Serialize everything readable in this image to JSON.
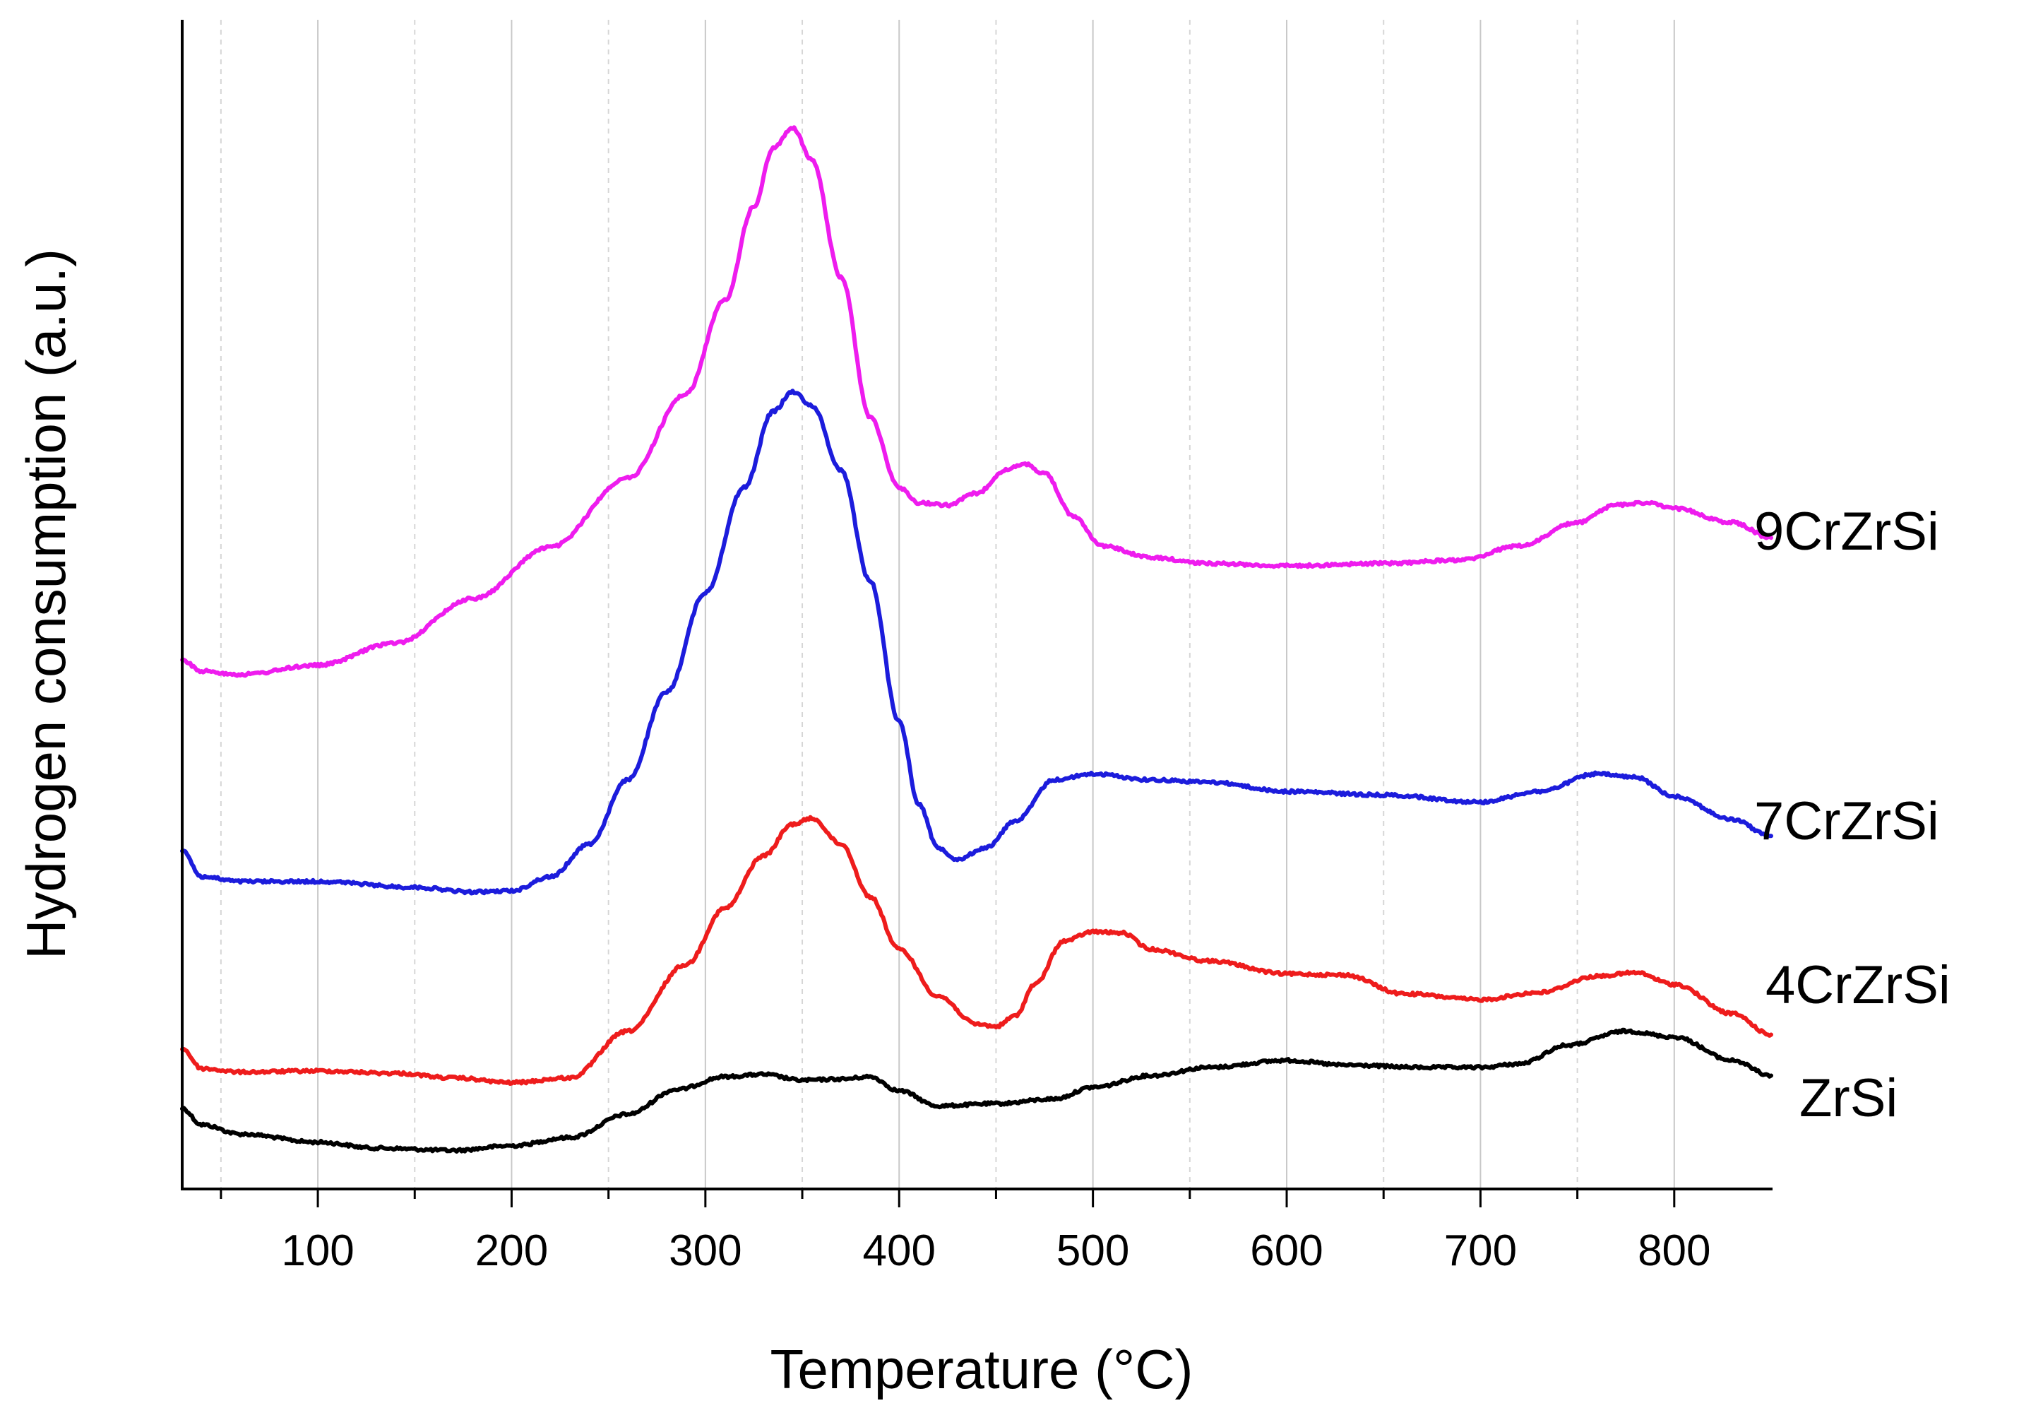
{
  "chart_data": {
    "type": "line",
    "title": "",
    "xlabel": "Temperature (°C)",
    "ylabel": "Hydrogen consumption (a.u.)",
    "xlim": [
      30,
      850
    ],
    "ylim": [
      0,
      100
    ],
    "x_ticks": [
      100,
      200,
      300,
      400,
      500,
      600,
      700,
      800
    ],
    "x_tick_labels": [
      "100",
      "200",
      "300",
      "400",
      "500",
      "600",
      "700",
      "800"
    ],
    "x_minor_ticks": [
      50,
      150,
      250,
      350,
      450,
      550,
      650,
      750
    ],
    "y_tick_labels": false,
    "grid": "vertical",
    "series": [
      {
        "name": "ZrSi",
        "label": "ZrSi",
        "color": "#000000",
        "points": [
          [
            30,
            6.9
          ],
          [
            40,
            5.5
          ],
          [
            60,
            4.7
          ],
          [
            100,
            4.0
          ],
          [
            130,
            3.5
          ],
          [
            170,
            3.3
          ],
          [
            200,
            3.7
          ],
          [
            230,
            4.4
          ],
          [
            260,
            6.4
          ],
          [
            285,
            8.5
          ],
          [
            310,
            9.6
          ],
          [
            330,
            9.8
          ],
          [
            350,
            9.3
          ],
          [
            370,
            9.4
          ],
          [
            385,
            9.6
          ],
          [
            400,
            8.4
          ],
          [
            420,
            7.1
          ],
          [
            450,
            7.3
          ],
          [
            480,
            7.7
          ],
          [
            500,
            8.7
          ],
          [
            530,
            9.7
          ],
          [
            560,
            10.4
          ],
          [
            600,
            11.0
          ],
          [
            630,
            10.6
          ],
          [
            670,
            10.4
          ],
          [
            700,
            10.4
          ],
          [
            720,
            10.7
          ],
          [
            745,
            12.3
          ],
          [
            775,
            13.5
          ],
          [
            800,
            13.0
          ],
          [
            830,
            11.0
          ],
          [
            850,
            9.7
          ]
        ]
      },
      {
        "name": "4CrZrSi",
        "label": "4CrZrSi",
        "color": "#ee1c1c",
        "points": [
          [
            30,
            12.0
          ],
          [
            40,
            10.3
          ],
          [
            60,
            10.0
          ],
          [
            100,
            10.1
          ],
          [
            140,
            9.9
          ],
          [
            170,
            9.5
          ],
          [
            200,
            9.1
          ],
          [
            230,
            9.5
          ],
          [
            260,
            13.5
          ],
          [
            290,
            19.2
          ],
          [
            310,
            24.0
          ],
          [
            330,
            28.5
          ],
          [
            345,
            31.2
          ],
          [
            355,
            31.7
          ],
          [
            370,
            29.5
          ],
          [
            385,
            25.0
          ],
          [
            400,
            20.5
          ],
          [
            420,
            16.5
          ],
          [
            440,
            14.1
          ],
          [
            450,
            13.9
          ],
          [
            460,
            14.8
          ],
          [
            470,
            17.5
          ],
          [
            485,
            21.2
          ],
          [
            500,
            22.0
          ],
          [
            515,
            21.9
          ],
          [
            530,
            20.5
          ],
          [
            560,
            19.5
          ],
          [
            600,
            18.4
          ],
          [
            630,
            18.3
          ],
          [
            660,
            16.7
          ],
          [
            700,
            16.2
          ],
          [
            730,
            16.8
          ],
          [
            760,
            18.2
          ],
          [
            780,
            18.5
          ],
          [
            800,
            17.5
          ],
          [
            830,
            15.0
          ],
          [
            850,
            13.2
          ]
        ]
      },
      {
        "name": "7CrZrSi",
        "label": "7CrZrSi",
        "color": "#1c1cdc",
        "points": [
          [
            30,
            29.0
          ],
          [
            40,
            26.7
          ],
          [
            60,
            26.3
          ],
          [
            100,
            26.3
          ],
          [
            150,
            25.8
          ],
          [
            180,
            25.4
          ],
          [
            200,
            25.5
          ],
          [
            220,
            26.7
          ],
          [
            240,
            29.5
          ],
          [
            260,
            35.0
          ],
          [
            280,
            42.5
          ],
          [
            300,
            51.0
          ],
          [
            320,
            60.0
          ],
          [
            335,
            66.5
          ],
          [
            345,
            68.2
          ],
          [
            355,
            67.0
          ],
          [
            370,
            61.5
          ],
          [
            385,
            52.0
          ],
          [
            400,
            40.0
          ],
          [
            410,
            33.0
          ],
          [
            420,
            29.2
          ],
          [
            430,
            28.2
          ],
          [
            445,
            29.2
          ],
          [
            460,
            31.5
          ],
          [
            480,
            35.0
          ],
          [
            500,
            35.5
          ],
          [
            530,
            35.0
          ],
          [
            560,
            34.8
          ],
          [
            600,
            34.0
          ],
          [
            650,
            33.7
          ],
          [
            700,
            33.1
          ],
          [
            730,
            34.0
          ],
          [
            760,
            35.5
          ],
          [
            780,
            35.2
          ],
          [
            800,
            33.6
          ],
          [
            830,
            31.6
          ],
          [
            850,
            30.2
          ]
        ]
      },
      {
        "name": "9CrZrSi",
        "label": "9CrZrSi",
        "color": "#ee1cee",
        "points": [
          [
            30,
            45.2
          ],
          [
            40,
            44.3
          ],
          [
            60,
            44.0
          ],
          [
            100,
            44.8
          ],
          [
            140,
            46.7
          ],
          [
            180,
            50.5
          ],
          [
            220,
            54.9
          ],
          [
            260,
            60.8
          ],
          [
            290,
            68.0
          ],
          [
            310,
            76.0
          ],
          [
            325,
            84.0
          ],
          [
            335,
            89.0
          ],
          [
            345,
            90.8
          ],
          [
            355,
            88.0
          ],
          [
            370,
            78.0
          ],
          [
            385,
            66.0
          ],
          [
            400,
            60.0
          ],
          [
            410,
            58.7
          ],
          [
            425,
            58.5
          ],
          [
            440,
            59.5
          ],
          [
            455,
            61.5
          ],
          [
            465,
            62.0
          ],
          [
            475,
            61.2
          ],
          [
            490,
            57.5
          ],
          [
            505,
            55.0
          ],
          [
            530,
            54.0
          ],
          [
            560,
            53.5
          ],
          [
            600,
            53.3
          ],
          [
            650,
            53.5
          ],
          [
            690,
            53.8
          ],
          [
            720,
            55.0
          ],
          [
            750,
            57.0
          ],
          [
            770,
            58.5
          ],
          [
            785,
            58.7
          ],
          [
            800,
            58.2
          ],
          [
            830,
            57.0
          ],
          [
            850,
            55.7
          ]
        ]
      }
    ]
  }
}
